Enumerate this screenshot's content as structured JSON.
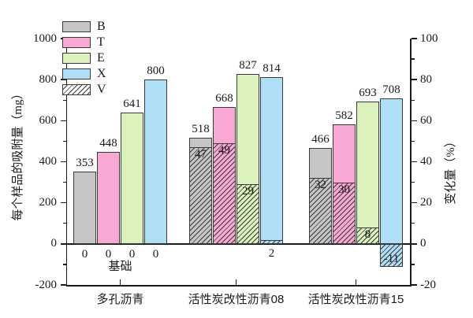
{
  "chart_data": {
    "type": "bar",
    "title": "",
    "ylabel_left": "每个样品的吸附量（mg）",
    "ylabel_right": "变化量（%）",
    "ylim_left": [
      -200,
      1000
    ],
    "ylim_right": [
      -20,
      100
    ],
    "yticks_left": [
      -200,
      0,
      200,
      400,
      600,
      800,
      1000
    ],
    "yticks_right": [
      -20,
      0,
      20,
      40,
      60,
      80,
      100
    ],
    "grid": false,
    "legend_position": "top-left-inside",
    "categories": [
      "多孔沥青",
      "活性炭改性沥青08",
      "活性炭改性沥青15"
    ],
    "series": [
      {
        "name": "B",
        "color": "#c6c6c6",
        "values": [
          353,
          518,
          466
        ],
        "change_pct": [
          0,
          47,
          32
        ]
      },
      {
        "name": "T",
        "color": "#f9a8d4",
        "values": [
          448,
          668,
          582
        ],
        "change_pct": [
          0,
          49,
          30
        ]
      },
      {
        "name": "E",
        "color": "#dbf2bd",
        "values": [
          641,
          827,
          693
        ],
        "change_pct": [
          0,
          29,
          8
        ]
      },
      {
        "name": "X",
        "color": "#aedff7",
        "values": [
          800,
          814,
          708
        ],
        "change_pct": [
          0,
          2,
          -11
        ]
      }
    ],
    "change_series_name": "V",
    "legend": [
      {
        "label": "B",
        "color": "#c6c6c6",
        "hatch": false
      },
      {
        "label": "T",
        "color": "#f9a8d4",
        "hatch": false
      },
      {
        "label": "E",
        "color": "#dbf2bd",
        "hatch": false
      },
      {
        "label": "X",
        "color": "#aedff7",
        "hatch": false
      },
      {
        "label": "V",
        "color": "#ffffff",
        "hatch": true
      }
    ],
    "baseline": {
      "label": "基础",
      "zeros": [
        "0",
        "0",
        "0",
        "0"
      ],
      "group_index": 0
    },
    "edge_color": "#3a3a3a",
    "text_color": "#1a1a1a"
  }
}
